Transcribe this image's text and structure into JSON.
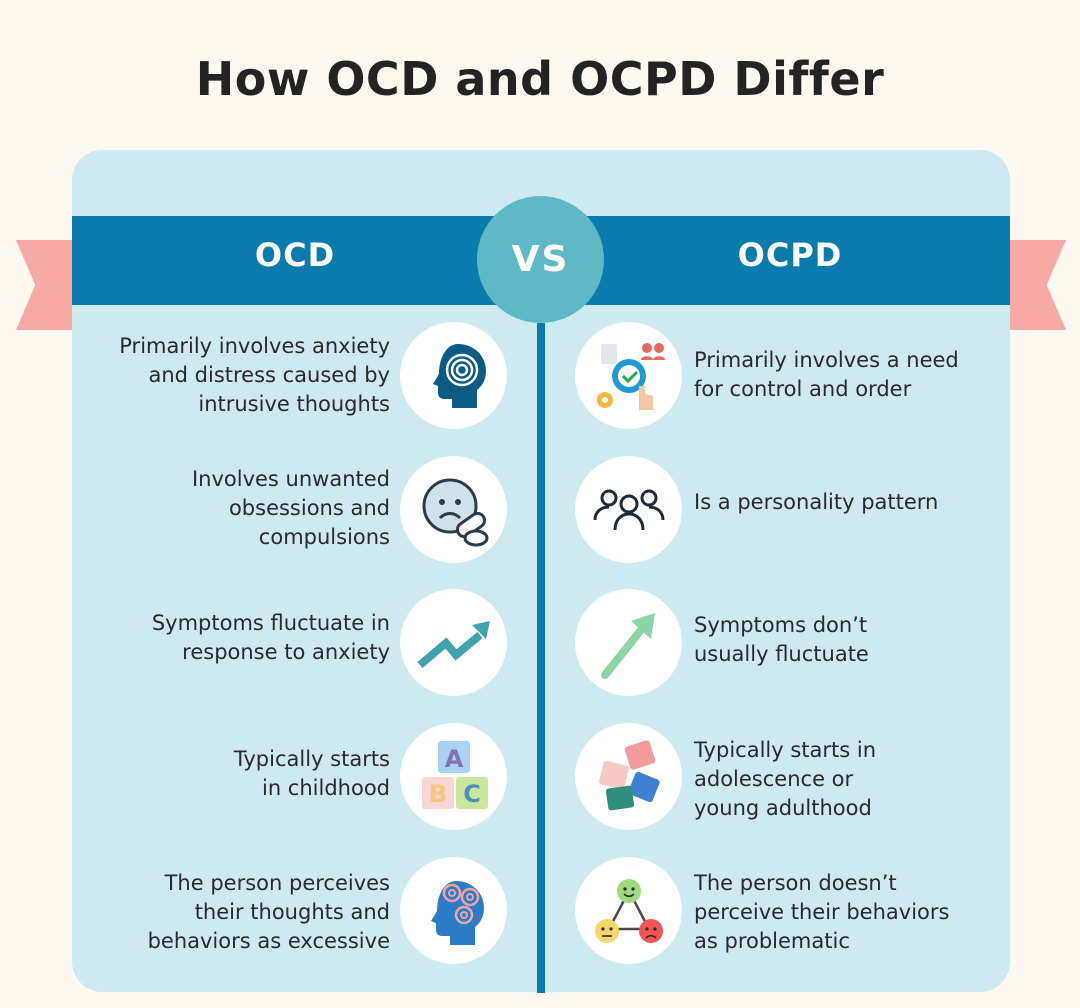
{
  "title": "How OCD and OCPD Differ",
  "banner": {
    "left_label": "OCD",
    "vs_label": "VS",
    "right_label": "OCPD"
  },
  "colors": {
    "background": "#fdf9f1",
    "card": "#cceaf0",
    "banner": "#0b7bae",
    "vs": "#5fb9c4",
    "ribbon": "#f7aaa3"
  },
  "ocd": [
    {
      "lines": [
        "Primarily involves anxiety",
        "and distress caused by",
        "intrusive thoughts"
      ],
      "icon": "head-spiral-icon"
    },
    {
      "lines": [
        "Involves unwanted",
        "obsessions and",
        "compulsions"
      ],
      "icon": "worried-face-pill-icon"
    },
    {
      "lines": [
        "Symptoms fluctuate in",
        "response to anxiety"
      ],
      "icon": "zigzag-arrow-icon"
    },
    {
      "lines": [
        "Typically starts",
        "in childhood"
      ],
      "icon": "abc-blocks-icon"
    },
    {
      "lines": [
        "The person perceives",
        "their thoughts and",
        "behaviors as excessive"
      ],
      "icon": "head-swirls-icon"
    }
  ],
  "ocpd": [
    {
      "lines": [
        "Primarily involves a need",
        "for control and order"
      ],
      "icon": "control-checklist-icon"
    },
    {
      "lines": [
        "Is a personality pattern"
      ],
      "icon": "people-group-icon"
    },
    {
      "lines": [
        "Symptoms don’t",
        "usually fluctuate"
      ],
      "icon": "straight-arrow-icon"
    },
    {
      "lines": [
        "Typically starts in",
        "adolescence or",
        "young adulthood"
      ],
      "icon": "puzzle-pieces-icon"
    },
    {
      "lines": [
        "The person doesn’t",
        "perceive their behaviors",
        "as problematic"
      ],
      "icon": "emotion-faces-icon"
    }
  ]
}
